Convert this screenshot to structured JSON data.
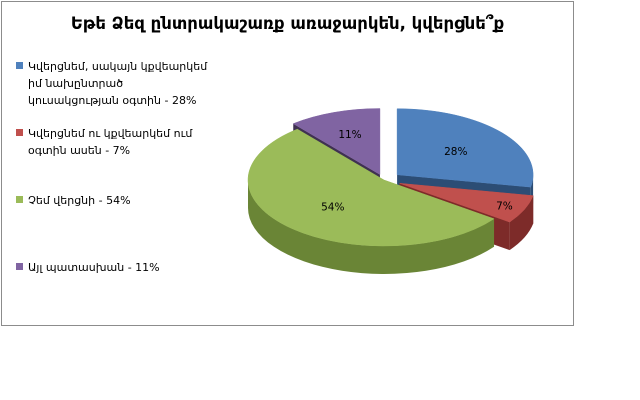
{
  "chart_data": {
    "type": "pie",
    "style": "3d-exploded",
    "title": "Եթե Ձեզ ընտրակաշառք առաջարկեն, կվերցնե՞ք",
    "legend_position": "left",
    "slices": [
      {
        "legend": "Կվերցնեմ, սակայն կքվեարկեմ իմ նախընտրած կուսակցության օգտին - 28%",
        "label": "28%",
        "value": 28,
        "color": "#4f81bd",
        "side_color": "#2c4d75"
      },
      {
        "legend": "Կվերցնեմ ու կքվեարկեմ ում օգտին ասեն - 7%",
        "label": "7%",
        "value": 7,
        "color": "#c0504d",
        "side_color": "#7d2b29"
      },
      {
        "legend": "Չեմ վերցնի - 54%",
        "label": "54%",
        "value": 54,
        "color": "#9bbb59",
        "side_color": "#6a8536"
      },
      {
        "legend": "Այլ պատասխան - 11%",
        "label": "11%",
        "value": 11,
        "color": "#8064a2",
        "side_color": "#3f3151"
      }
    ]
  }
}
